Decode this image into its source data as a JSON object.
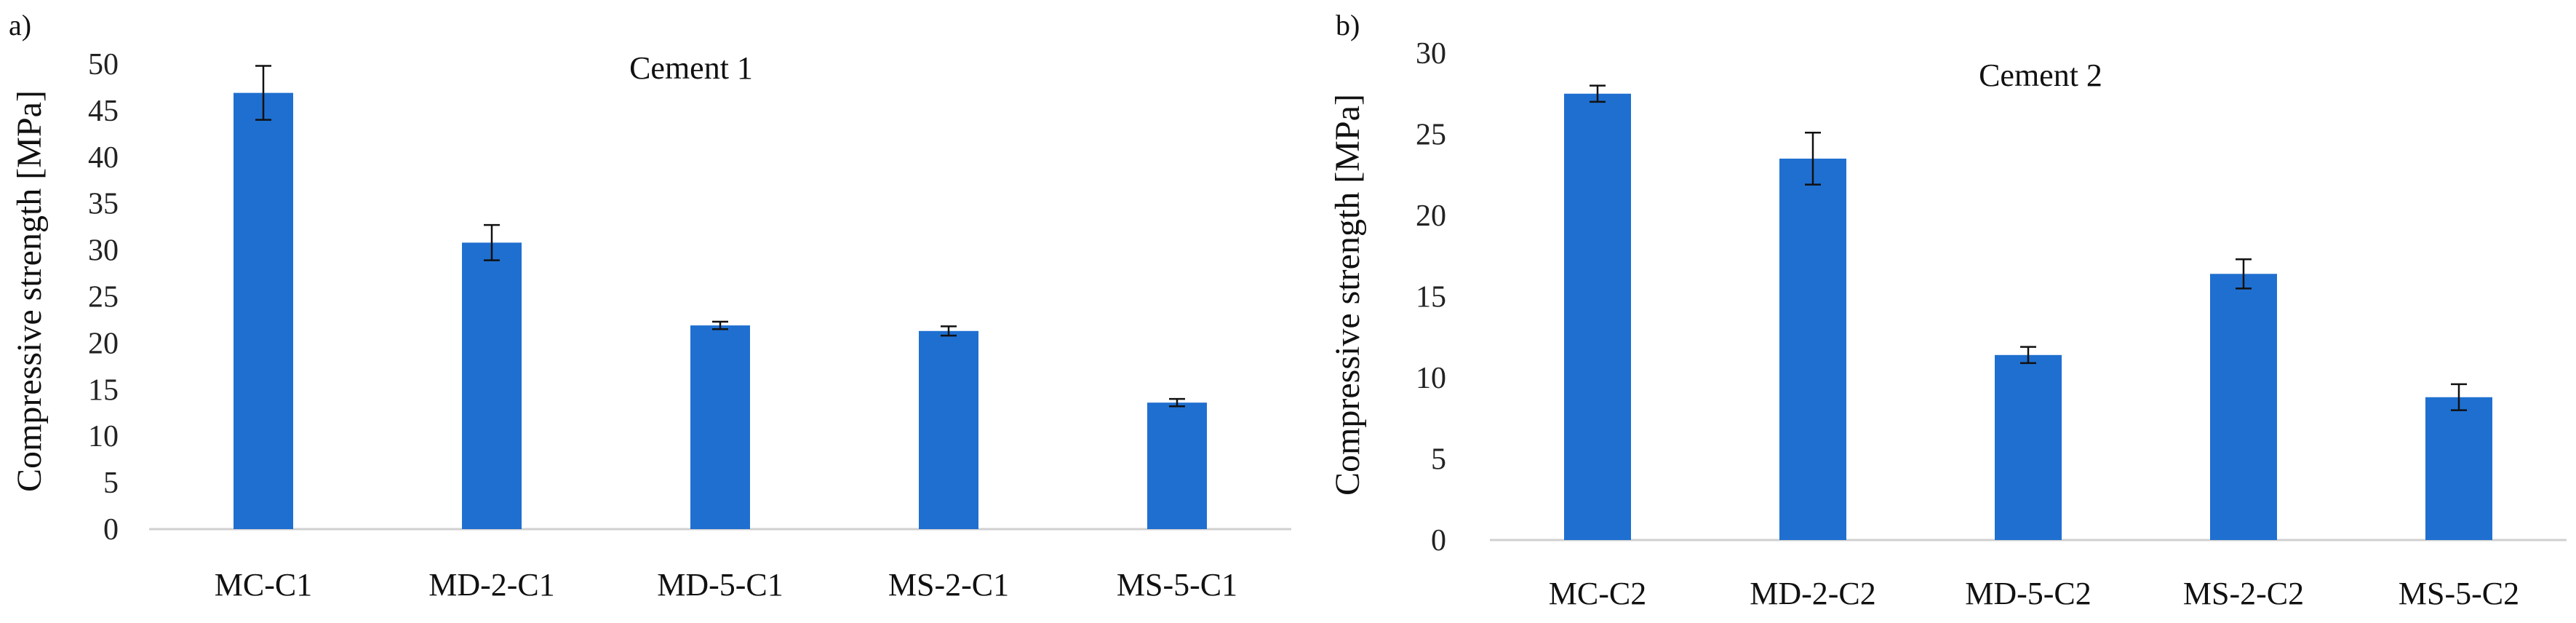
{
  "chart_data": [
    {
      "type": "bar",
      "panel_label": "a)",
      "title": "Cement 1",
      "xlabel": "",
      "ylabel": "Compressive strength [MPa]",
      "categories": [
        "MC-C1",
        "MD-2-C1",
        "MD-5-C1",
        "MS-2-C1",
        "MS-5-C1"
      ],
      "values": [
        46.9,
        30.8,
        21.9,
        21.3,
        13.6
      ],
      "errors": [
        2.9,
        1.9,
        0.4,
        0.5,
        0.4
      ],
      "ylim": [
        0,
        50
      ],
      "yticks": [
        0,
        5,
        10,
        15,
        20,
        25,
        30,
        35,
        40,
        45,
        50
      ],
      "grid": false,
      "bar_color": "#1f6fd0"
    },
    {
      "type": "bar",
      "panel_label": "b)",
      "title": "Cement 2",
      "xlabel": "",
      "ylabel": "Compressive strength [MPa]",
      "categories": [
        "MC-C2",
        "MD-2-C2",
        "MD-5-C2",
        "MS-2-C2",
        "MS-5-C2"
      ],
      "values": [
        27.5,
        23.5,
        11.4,
        16.4,
        8.8
      ],
      "errors": [
        0.5,
        1.6,
        0.5,
        0.9,
        0.8
      ],
      "ylim": [
        0,
        30
      ],
      "yticks": [
        0,
        5,
        10,
        15,
        20,
        25,
        30
      ],
      "grid": false,
      "bar_color": "#1f6fd0"
    }
  ]
}
